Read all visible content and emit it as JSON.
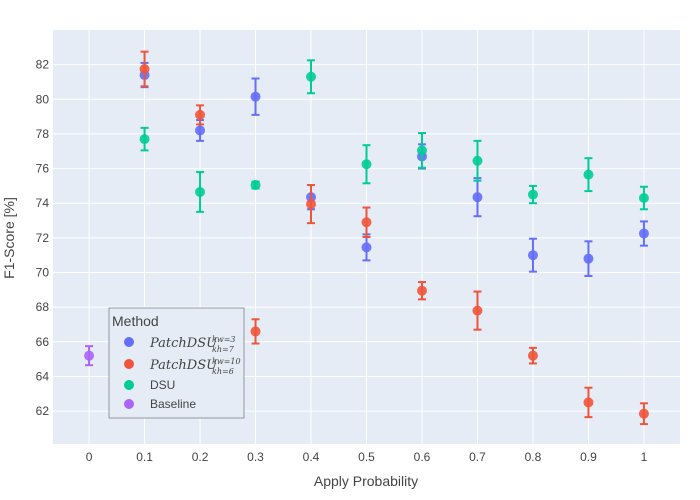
{
  "chart_data": {
    "type": "scatter",
    "xlabel": "Apply Probability",
    "ylabel": "F1-Score [%]",
    "x_ticks": [
      "0",
      "0.1",
      "0.2",
      "0.3",
      "0.4",
      "0.5",
      "0.6",
      "0.7",
      "0.8",
      "0.9",
      "1"
    ],
    "y_ticks": [
      "62",
      "64",
      "66",
      "68",
      "70",
      "72",
      "74",
      "76",
      "78",
      "80",
      "82"
    ],
    "xlim": [
      -0.065,
      1.065
    ],
    "ylim": [
      60.1,
      84.0
    ],
    "legend": {
      "title": "Method",
      "placement": "bottom-left"
    },
    "series": [
      {
        "name": "PatchDSU",
        "name_display_base": "PatchDSU",
        "name_sup": "kw=3",
        "name_sub": "kh=7",
        "color": "#636EFA",
        "x": [
          0.1,
          0.2,
          0.3,
          0.4,
          0.5,
          0.6,
          0.7,
          0.8,
          0.9,
          1.0
        ],
        "y": [
          81.4,
          78.2,
          80.15,
          74.35,
          71.45,
          76.7,
          74.35,
          71.0,
          70.8,
          72.25
        ],
        "err": [
          0.7,
          0.6,
          1.05,
          0.7,
          0.75,
          0.7,
          1.1,
          0.95,
          1.0,
          0.7
        ]
      },
      {
        "name": "PatchDSU",
        "name_display_base": "PatchDSU",
        "name_sup": "kw=10",
        "name_sub": "kh=6",
        "color": "#EF553B",
        "x": [
          0.1,
          0.2,
          0.3,
          0.4,
          0.5,
          0.6,
          0.7,
          0.8,
          0.9,
          1.0
        ],
        "y": [
          81.75,
          79.1,
          66.6,
          73.95,
          72.9,
          68.95,
          67.8,
          65.2,
          62.5,
          61.85
        ],
        "err": [
          1.0,
          0.55,
          0.7,
          1.1,
          0.85,
          0.5,
          1.1,
          0.45,
          0.85,
          0.6
        ]
      },
      {
        "name": "DSU",
        "color": "#00CC96",
        "x": [
          0.1,
          0.2,
          0.3,
          0.4,
          0.5,
          0.6,
          0.7,
          0.8,
          0.9,
          1.0
        ],
        "y": [
          77.7,
          74.65,
          75.05,
          81.3,
          76.25,
          77.05,
          76.45,
          74.5,
          75.65,
          74.3
        ],
        "err": [
          0.65,
          1.15,
          0.2,
          0.95,
          1.1,
          1.0,
          1.15,
          0.5,
          0.95,
          0.65
        ]
      },
      {
        "name": "Baseline",
        "color": "#AB63FA",
        "x": [
          0.0
        ],
        "y": [
          65.2
        ],
        "err": [
          0.55
        ]
      }
    ]
  }
}
